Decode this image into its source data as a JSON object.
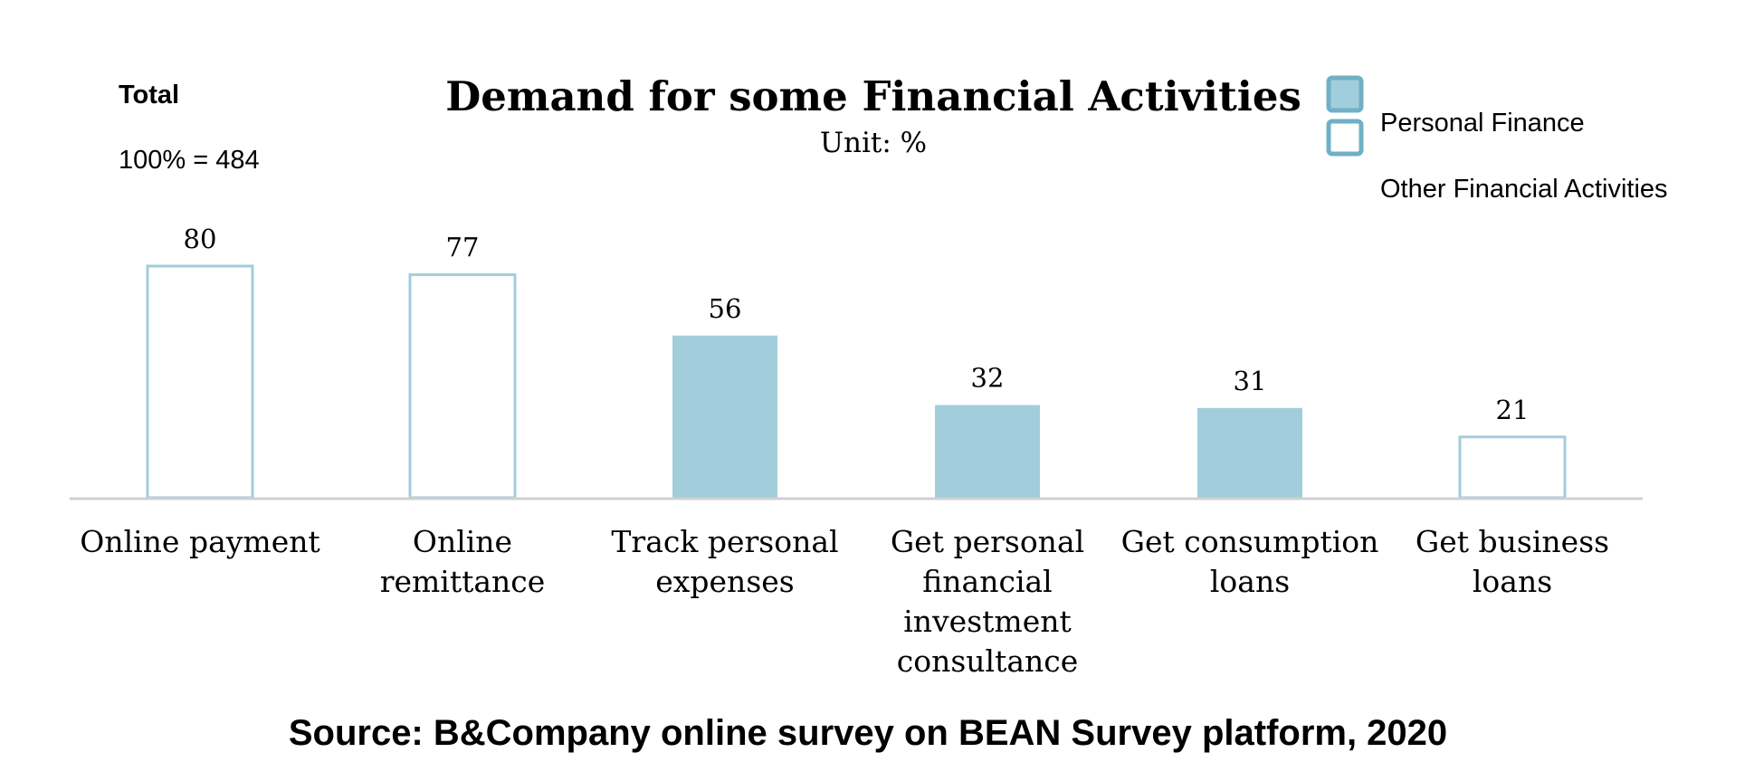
{
  "total_label": "Total",
  "base_label": "100% = 484",
  "source": "Source: B&Company online survey on BEAN Survey platform, 2020",
  "colors": {
    "personal_fill": "#a2cddb",
    "legend_stroke": "#6fb0c7",
    "outline": "#a2cddb",
    "axis": "#d0d0d0"
  },
  "chart_data": {
    "type": "bar",
    "title": "Demand for some Financial Activities",
    "subtitle": "Unit: %",
    "categories": [
      "Online payment",
      "Online remittance",
      "Track personal expenses",
      "Get personal financial investment consultance",
      "Get consumption loans",
      "Get business loans"
    ],
    "category_lines": [
      [
        "Online payment"
      ],
      [
        "Online",
        "remittance"
      ],
      [
        "Track personal",
        "expenses"
      ],
      [
        "Get personal",
        "financial",
        "investment",
        "consultance"
      ],
      [
        "Get consumption",
        "loans"
      ],
      [
        "Get business",
        "loans"
      ]
    ],
    "values": [
      80,
      77,
      56,
      32,
      31,
      21
    ],
    "groups": [
      "Other Financial Activities",
      "Other Financial Activities",
      "Personal Finance",
      "Personal Finance",
      "Personal Finance",
      "Other Financial Activities"
    ],
    "legend": [
      "Personal Finance",
      "Other Financial Activities"
    ],
    "legend_position": "top-right",
    "ylim": [
      0,
      100
    ],
    "grid": false
  }
}
